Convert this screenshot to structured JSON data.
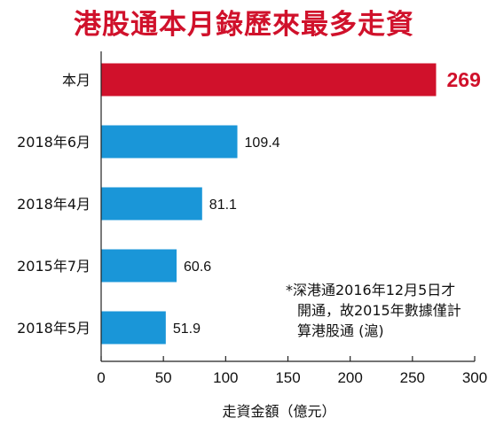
{
  "title": "港股通本月錄歷來最多走資",
  "note": [
    "*深港通2016年12月5日才",
    "開通，故2015年數據僅計",
    "算港股通 (滬)"
  ],
  "chart_data": {
    "type": "bar",
    "orientation": "horizontal",
    "title": "港股通本月錄歷來最多走資",
    "categories": [
      "本月",
      "2018年6月",
      "2018年4月",
      "2015年7月",
      "2018年5月"
    ],
    "values": [
      269,
      109.4,
      81.1,
      60.6,
      51.9
    ],
    "value_labels": [
      "269",
      "109.4",
      "81.1",
      "60.6",
      "51.9"
    ],
    "xlabel": "走資金額（億元）",
    "ylabel": "",
    "xlim": [
      0,
      300
    ],
    "xticks": [
      0,
      50,
      100,
      150,
      200,
      250,
      300
    ],
    "grid": false,
    "colors": {
      "highlight": "#d0112b",
      "bar": "#1a96d8",
      "axis": "#222222"
    }
  }
}
